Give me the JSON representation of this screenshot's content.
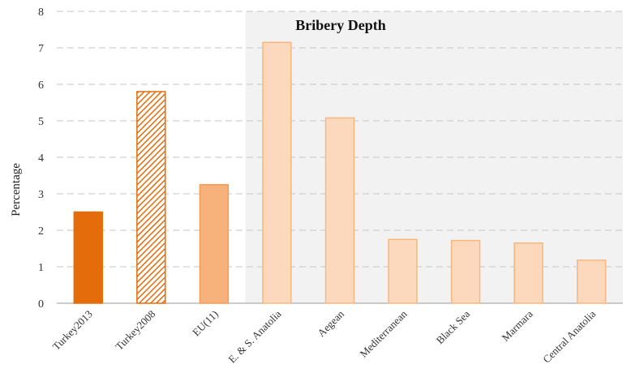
{
  "chart_data": {
    "type": "bar",
    "title": "Bribery Depth",
    "xlabel": "",
    "ylabel": "Percentage",
    "ylim": [
      0,
      8
    ],
    "yticks": [
      0,
      1,
      2,
      3,
      4,
      5,
      6,
      7,
      8
    ],
    "grid": true,
    "legend": "none",
    "categories": [
      "Turkey2013",
      "Turkey2008",
      "EU(11)",
      "E. & S. Anatolia",
      "Aegean",
      "Mediterranean",
      "Black Sea",
      "Marmara",
      "Central Anatolia"
    ],
    "values": [
      2.5,
      5.8,
      3.25,
      7.15,
      5.08,
      1.75,
      1.72,
      1.65,
      1.18
    ],
    "bar_styles": [
      "solid",
      "hatched",
      "solid",
      "solid",
      "solid",
      "solid",
      "solid",
      "solid",
      "solid"
    ],
    "bar_colors": [
      "#e46c0a",
      "#e46c0a",
      "#f6b27a",
      "#fcd9bd",
      "#fcd9bd",
      "#fcd9bd",
      "#fcd9bd",
      "#fcd9bd",
      "#fcd9bd"
    ],
    "bar_stroke_colors": [
      "#e46c0a",
      "#e46c0a",
      "#f59c55",
      "#f8b77f",
      "#f8b77f",
      "#f8b77f",
      "#f8b77f",
      "#f8b77f",
      "#f8b77f"
    ],
    "highlight_band_color": "#f2f2f2",
    "highlight_band_categories": [
      "E. & S. Anatolia",
      "Aegean",
      "Mediterranean",
      "Black Sea",
      "Marmara",
      "Central Anatolia"
    ]
  }
}
